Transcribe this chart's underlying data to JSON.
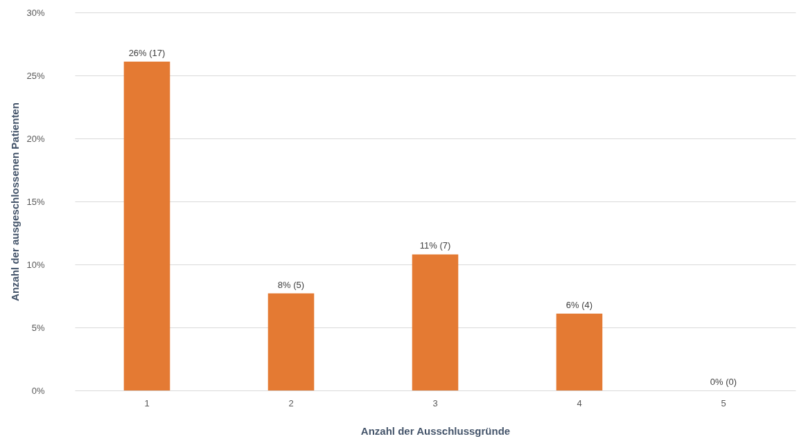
{
  "chart_data": {
    "type": "bar",
    "xlabel": "Anzahl der Ausschlussgründe",
    "ylabel": "Anzahl der ausgeschlossenen Patienten",
    "categories": [
      "1",
      "2",
      "3",
      "4",
      "5"
    ],
    "values": [
      26.1,
      7.7,
      10.8,
      6.1,
      0
    ],
    "value_labels": [
      "26% (17)",
      "8% (5)",
      "11% (7)",
      "6% (4)",
      "0% (0)"
    ],
    "color": "#e47a33",
    "ylim": [
      0,
      30
    ],
    "yticks": [
      {
        "value": 0,
        "label": "0%"
      },
      {
        "value": 5,
        "label": "5%"
      },
      {
        "value": 10,
        "label": "10%"
      },
      {
        "value": 15,
        "label": "15%"
      },
      {
        "value": 20,
        "label": "20%"
      },
      {
        "value": 25,
        "label": "25%"
      },
      {
        "value": 30,
        "label": "30%"
      }
    ],
    "grid": "y"
  }
}
